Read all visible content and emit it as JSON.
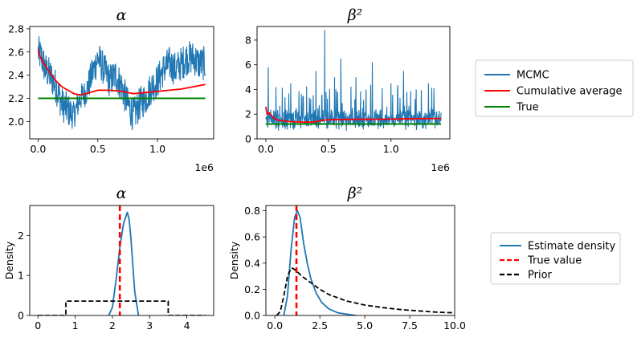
{
  "chart_data": [
    {
      "id": "trace_alpha",
      "type": "line",
      "title": "α",
      "xlabel": "",
      "ylabel": "",
      "x_scale_label": "1e6",
      "xlim": [
        -0.07,
        1.47
      ],
      "ylim": [
        1.85,
        2.82
      ],
      "xticks": [
        0,
        0.5,
        1.0
      ],
      "xtick_labels": [
        "0.0",
        "0.5",
        "1.0"
      ],
      "yticks": [
        2.0,
        2.2,
        2.4,
        2.6,
        2.8
      ],
      "ytick_labels": [
        "2.0",
        "2.2",
        "2.4",
        "2.6",
        "2.8"
      ],
      "series": [
        {
          "name": "MCMC",
          "color": "#1f77b4",
          "kind": "trace",
          "x": [
            0,
            0.03,
            0.06,
            0.1,
            0.15,
            0.2,
            0.25,
            0.3,
            0.35,
            0.4,
            0.45,
            0.5,
            0.55,
            0.6,
            0.65,
            0.7,
            0.75,
            0.8,
            0.85,
            0.9,
            0.95,
            1.0,
            1.05,
            1.1,
            1.15,
            1.2,
            1.25,
            1.3,
            1.35,
            1.4
          ],
          "center": [
            2.6,
            2.55,
            2.45,
            2.4,
            2.3,
            2.15,
            2.1,
            2.05,
            2.2,
            2.25,
            2.4,
            2.55,
            2.45,
            2.35,
            2.4,
            2.3,
            2.15,
            2.05,
            2.15,
            2.2,
            2.3,
            2.35,
            2.45,
            2.5,
            2.45,
            2.5,
            2.55,
            2.55,
            2.5,
            2.5
          ],
          "spread": [
            0.15,
            0.15,
            0.15,
            0.15,
            0.15,
            0.15,
            0.15,
            0.12,
            0.12,
            0.12,
            0.15,
            0.15,
            0.15,
            0.15,
            0.15,
            0.15,
            0.15,
            0.15,
            0.15,
            0.15,
            0.15,
            0.15,
            0.15,
            0.15,
            0.15,
            0.15,
            0.15,
            0.15,
            0.15,
            0.15
          ]
        },
        {
          "name": "Cumulative average",
          "color": "#ff0000",
          "x": [
            0,
            0.02,
            0.05,
            0.1,
            0.15,
            0.2,
            0.25,
            0.3,
            0.35,
            0.4,
            0.5,
            0.6,
            0.7,
            0.8,
            0.9,
            1.0,
            1.1,
            1.2,
            1.3,
            1.4
          ],
          "y": [
            2.62,
            2.55,
            2.5,
            2.42,
            2.35,
            2.3,
            2.27,
            2.24,
            2.23,
            2.24,
            2.27,
            2.27,
            2.26,
            2.24,
            2.25,
            2.26,
            2.27,
            2.28,
            2.3,
            2.32
          ]
        },
        {
          "name": "True",
          "color": "#008000",
          "x": [
            0,
            1.4
          ],
          "y": [
            2.2,
            2.2
          ]
        }
      ]
    },
    {
      "id": "trace_beta2",
      "type": "line",
      "title": "β²",
      "xlabel": "",
      "ylabel": "",
      "x_scale_label": "1e6",
      "xlim": [
        -0.07,
        1.47
      ],
      "ylim": [
        0,
        9.1
      ],
      "xticks": [
        0,
        0.5,
        1.0
      ],
      "xtick_labels": [
        "0.0",
        "0.5",
        "1.0"
      ],
      "yticks": [
        0,
        2,
        4,
        6,
        8
      ],
      "ytick_labels": [
        "0",
        "2",
        "4",
        "6",
        "8"
      ],
      "series": [
        {
          "name": "MCMC",
          "color": "#1f77b4",
          "kind": "spiky",
          "x": [
            0,
            1.4
          ],
          "base": 1.2,
          "spread": 0.8,
          "spikes": [
            {
              "x": 0.02,
              "y": 5.8
            },
            {
              "x": 0.08,
              "y": 4.2
            },
            {
              "x": 0.2,
              "y": 4.5
            },
            {
              "x": 0.3,
              "y": 3.5
            },
            {
              "x": 0.4,
              "y": 5.5
            },
            {
              "x": 0.47,
              "y": 8.8
            },
            {
              "x": 0.55,
              "y": 5.0
            },
            {
              "x": 0.6,
              "y": 6.5
            },
            {
              "x": 0.72,
              "y": 5.0
            },
            {
              "x": 0.8,
              "y": 4.0
            },
            {
              "x": 0.85,
              "y": 6.2
            },
            {
              "x": 1.0,
              "y": 4.5
            },
            {
              "x": 1.1,
              "y": 5.5
            },
            {
              "x": 1.2,
              "y": 4.0
            },
            {
              "x": 1.3,
              "y": 4.5
            }
          ]
        },
        {
          "name": "Cumulative average",
          "color": "#ff0000",
          "x": [
            0,
            0.01,
            0.03,
            0.06,
            0.1,
            0.2,
            0.3,
            0.4,
            0.45,
            0.5,
            0.7,
            1.0,
            1.2,
            1.4
          ],
          "y": [
            2.6,
            2.0,
            2.1,
            1.7,
            1.5,
            1.4,
            1.35,
            1.38,
            1.5,
            1.55,
            1.58,
            1.6,
            1.63,
            1.65
          ]
        },
        {
          "name": "True",
          "color": "#008000",
          "x": [
            0,
            1.4
          ],
          "y": [
            1.2,
            1.2
          ]
        }
      ]
    },
    {
      "id": "density_alpha",
      "type": "line",
      "title": "α",
      "xlabel": "",
      "ylabel": "Density",
      "xlim": [
        -0.22,
        4.72
      ],
      "ylim": [
        0,
        2.75
      ],
      "xticks": [
        0,
        1,
        2,
        3,
        4
      ],
      "xtick_labels": [
        "0",
        "1",
        "2",
        "3",
        "4"
      ],
      "yticks": [
        0,
        1,
        2
      ],
      "ytick_labels": [
        "0",
        "1",
        "2"
      ],
      "series": [
        {
          "name": "Estimate density",
          "color": "#1f77b4",
          "style": "solid",
          "x": [
            1.9,
            2.0,
            2.1,
            2.2,
            2.3,
            2.4,
            2.45,
            2.5,
            2.6,
            2.7
          ],
          "y": [
            0.0,
            0.2,
            0.9,
            1.7,
            2.3,
            2.58,
            2.4,
            1.9,
            0.6,
            0.0
          ]
        },
        {
          "name": "True value",
          "color": "#ff0000",
          "style": "dashed",
          "vertical": 2.2
        },
        {
          "name": "Prior",
          "color": "#000000",
          "style": "dashed",
          "x": [
            0,
            0.75,
            0.75,
            3.5,
            3.5,
            4.5
          ],
          "y": [
            0,
            0,
            0.36,
            0.36,
            0,
            0
          ]
        }
      ]
    },
    {
      "id": "density_beta2",
      "type": "line",
      "title": "β²",
      "xlabel": "",
      "ylabel": "Density",
      "xlim": [
        -0.5,
        10.0
      ],
      "ylim": [
        0,
        0.84
      ],
      "xticks": [
        0,
        2.5,
        5,
        7.5,
        10
      ],
      "xtick_labels": [
        "0.0",
        "2.5",
        "5.0",
        "7.5",
        "10.0"
      ],
      "yticks": [
        0,
        0.2,
        0.4,
        0.6,
        0.8
      ],
      "ytick_labels": [
        "0.0",
        "0.2",
        "0.4",
        "0.6",
        "0.8"
      ],
      "series": [
        {
          "name": "Estimate density",
          "color": "#1f77b4",
          "style": "solid",
          "x": [
            0.5,
            0.7,
            0.9,
            1.1,
            1.25,
            1.4,
            1.6,
            1.8,
            2.0,
            2.3,
            2.6,
            3.0,
            3.5,
            4.0,
            4.5
          ],
          "y": [
            0.0,
            0.15,
            0.5,
            0.75,
            0.8,
            0.75,
            0.55,
            0.4,
            0.28,
            0.17,
            0.1,
            0.05,
            0.02,
            0.01,
            0.0
          ]
        },
        {
          "name": "True value",
          "color": "#ff0000",
          "style": "dashed",
          "vertical": 1.2
        },
        {
          "name": "Prior",
          "color": "#000000",
          "style": "dashed",
          "x": [
            0.1,
            0.3,
            0.5,
            0.7,
            0.9,
            1.0,
            1.2,
            1.5,
            2.0,
            2.5,
            3.0,
            4.0,
            5.0,
            6.0,
            7.0,
            8.0,
            9.0,
            10.0
          ],
          "y": [
            0.0,
            0.03,
            0.15,
            0.3,
            0.36,
            0.36,
            0.34,
            0.3,
            0.25,
            0.2,
            0.16,
            0.11,
            0.08,
            0.06,
            0.045,
            0.035,
            0.025,
            0.02
          ]
        }
      ]
    }
  ],
  "legends": [
    {
      "entries": [
        {
          "label": "MCMC",
          "color": "#1f77b4",
          "style": "solid"
        },
        {
          "label": "Cumulative average",
          "color": "#ff0000",
          "style": "solid"
        },
        {
          "label": "True",
          "color": "#008000",
          "style": "solid"
        }
      ]
    },
    {
      "entries": [
        {
          "label": "Estimate density",
          "color": "#1f77b4",
          "style": "solid"
        },
        {
          "label": "True value",
          "color": "#ff0000",
          "style": "dashed"
        },
        {
          "label": "Prior",
          "color": "#000000",
          "style": "dashed"
        }
      ]
    }
  ]
}
